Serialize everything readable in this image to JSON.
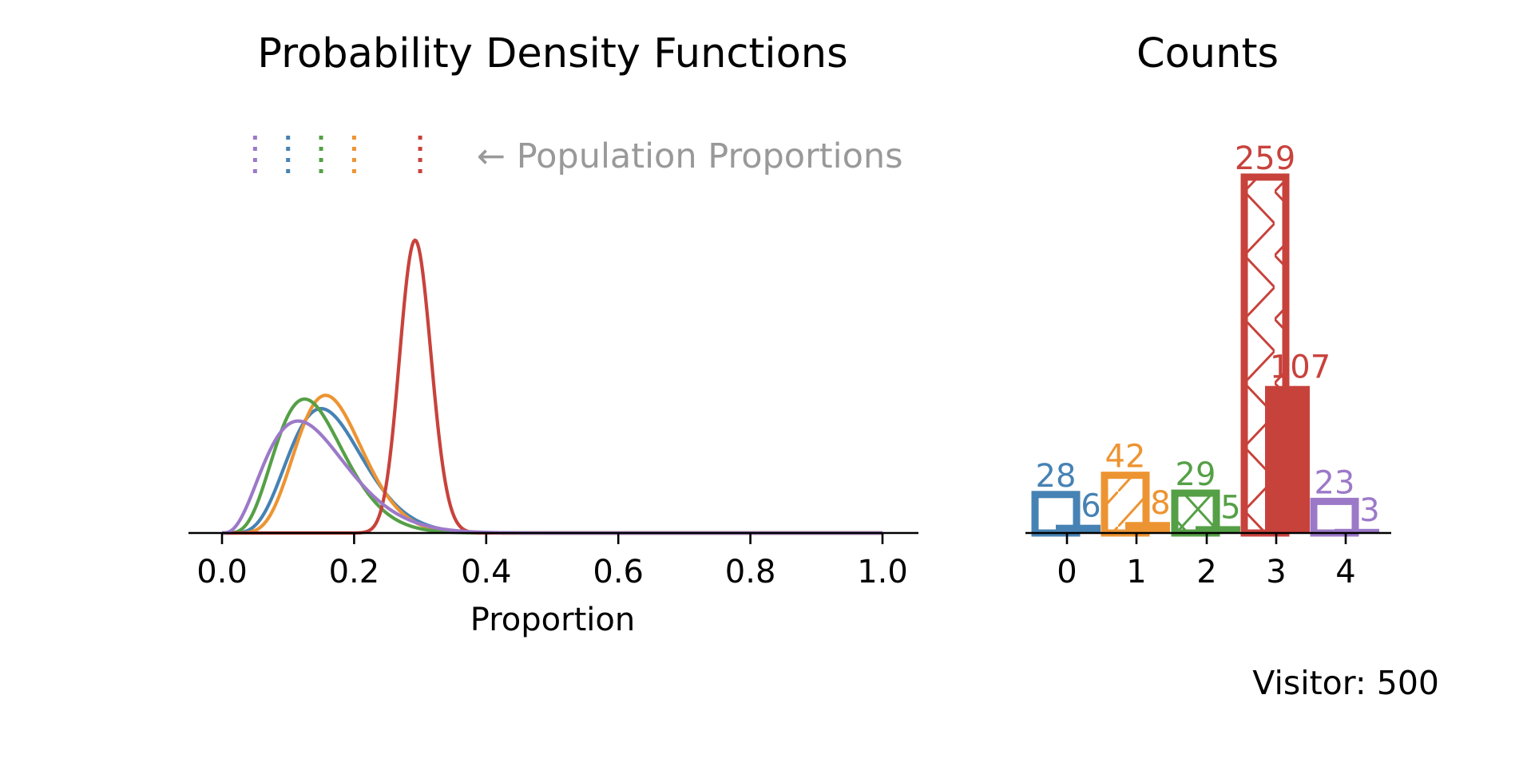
{
  "colors": {
    "blue": "#4682b4",
    "orange": "#ed9432",
    "green": "#55a046",
    "red": "#c8423c",
    "purple": "#9c79c8",
    "anno": "#999999",
    "axis": "#000000"
  },
  "visitor_label": "Visitor: 500",
  "chart_data": [
    {
      "type": "line",
      "title": "Probability Density Functions",
      "xlabel": "Proportion",
      "ylabel": "",
      "xlim": [
        -0.05,
        1.05
      ],
      "xticks": [
        0.0,
        0.2,
        0.4,
        0.6,
        0.8,
        1.0
      ],
      "xtick_labels": [
        "0.0",
        "0.2",
        "0.4",
        "0.6",
        "0.8",
        "1.0"
      ],
      "y_axis_visible": false,
      "grid": false,
      "annotation": "← Population Proportions",
      "population_proportions": [
        {
          "color": "purple",
          "x": 0.05
        },
        {
          "color": "blue",
          "x": 0.1
        },
        {
          "color": "green",
          "x": 0.15
        },
        {
          "color": "orange",
          "x": 0.2
        },
        {
          "color": "red",
          "x": 0.3
        }
      ],
      "series": [
        {
          "color": "blue",
          "distribution": "beta",
          "alpha": 7,
          "beta": 35
        },
        {
          "color": "orange",
          "distribution": "beta",
          "alpha": 9,
          "beta": 44
        },
        {
          "color": "green",
          "distribution": "beta",
          "alpha": 6,
          "beta": 36
        },
        {
          "color": "red",
          "distribution": "beta",
          "alpha": 108,
          "beta": 260
        },
        {
          "color": "purple",
          "distribution": "beta",
          "alpha": 4,
          "beta": 24
        }
      ]
    },
    {
      "type": "bar",
      "title": "Counts",
      "categories": [
        "0",
        "1",
        "2",
        "3",
        "4"
      ],
      "series": [
        {
          "kind": "trials",
          "values": [
            28,
            42,
            29,
            259,
            23
          ]
        },
        {
          "kind": "successes",
          "values": [
            6,
            8,
            5,
            107,
            3
          ]
        }
      ],
      "bar_colors": [
        "blue",
        "orange",
        "green",
        "red",
        "purple"
      ],
      "trial_bar_hatch": [
        "none",
        "single-diagonal",
        "cross",
        "zigzag-lattice",
        "none"
      ],
      "ylim": [
        0,
        270
      ],
      "y_axis_visible": false,
      "grid": false
    }
  ]
}
